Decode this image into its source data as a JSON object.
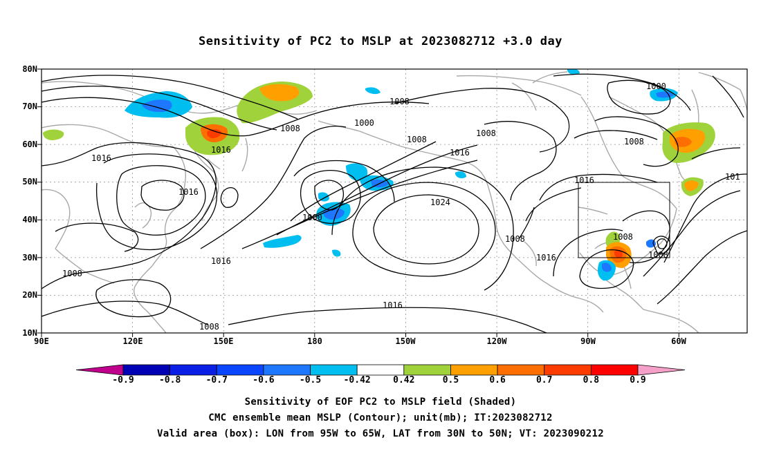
{
  "title": "Sensitivity of PC2 to MSLP at 2023082712 +3.0 day",
  "axes": {
    "lat_labels": [
      "80N",
      "70N",
      "60N",
      "50N",
      "40N",
      "30N",
      "20N",
      "10N"
    ],
    "lon_labels": [
      "90E",
      "120E",
      "150E",
      "180",
      "150W",
      "120W",
      "90W",
      "60W"
    ]
  },
  "contour_labels": [
    "1008",
    "1008",
    "1016",
    "1016",
    "1016",
    "1008",
    "1008",
    "1000",
    "1008",
    "1016",
    "1000",
    "1024",
    "1016",
    "1008",
    "1016",
    "1016",
    "1008",
    "1008",
    "1016",
    "1000",
    "1008",
    "101",
    "1008"
  ],
  "colorbar": {
    "ticks": [
      "-0.9",
      "-0.8",
      "-0.7",
      "-0.6",
      "-0.5",
      "-0.42",
      "0.42",
      "0.5",
      "0.6",
      "0.7",
      "0.8",
      "0.9"
    ],
    "colors": [
      "#c0008c",
      "#0000b4",
      "#0a1ee6",
      "#0a46ff",
      "#1e78ff",
      "#00bef0",
      "#ffffff",
      "#a0d23c",
      "#ffa000",
      "#ff6e00",
      "#ff3c00",
      "#ff0000",
      "#f5a0c8"
    ]
  },
  "captions": [
    "Sensitivity of EOF PC2 to MSLP field (Shaded)",
    "CMC ensemble mean MSLP (Contour); unit(mb); IT:2023082712",
    "Valid area (box): LON from 95W to 65W, LAT from 30N to 50N; VT: 2023090212"
  ],
  "colors": {
    "contour": "#000000",
    "coast": "#a0a0a0",
    "grid": "#808080"
  }
}
